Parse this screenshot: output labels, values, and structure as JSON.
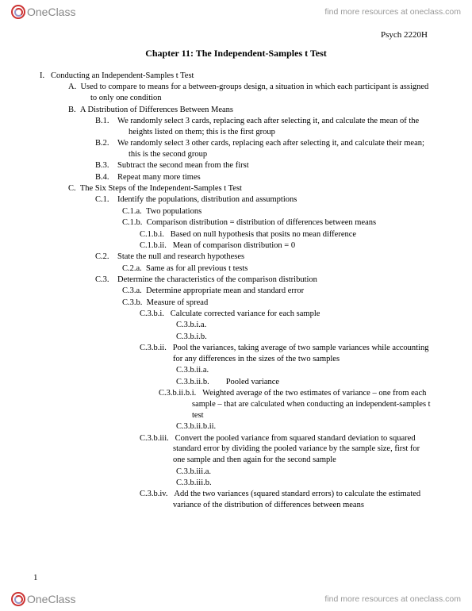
{
  "brand": {
    "name": "OneClass",
    "tagline": "find more resources at oneclass.com"
  },
  "course_code": "Psych 2220H",
  "chapter_title": "Chapter 11: The Independent-Samples t Test",
  "page_number": "1",
  "outline": {
    "I": {
      "num": "I.",
      "text": "Conducting an Independent-Samples t Test"
    },
    "A": {
      "num": "A.",
      "text": "Used to compare to means for a between-groups design, a situation in which each participant is assigned to only one condition"
    },
    "B": {
      "num": "B.",
      "text": "A Distribution of Differences Between Means"
    },
    "B1": {
      "num": "B.1.",
      "text": "We randomly select 3 cards, replacing each after selecting it, and calculate the mean of the heights listed on them; this is the first group"
    },
    "B2": {
      "num": "B.2.",
      "text": "We randomly select 3 other cards, replacing each after selecting it, and calculate their mean; this is the second group"
    },
    "B3": {
      "num": "B.3.",
      "text": "Subtract the second mean from the first"
    },
    "B4": {
      "num": "B.4.",
      "text": "Repeat many more times"
    },
    "C": {
      "num": "C.",
      "text": "The Six Steps of the Independent-Samples t Test"
    },
    "C1": {
      "num": "C.1.",
      "text": "Identify the populations, distribution and assumptions"
    },
    "C1a": {
      "num": "C.1.a.",
      "text": "Two populations"
    },
    "C1b": {
      "num": "C.1.b.",
      "text": "Comparison distribution = distribution of differences between means"
    },
    "C1bi": {
      "num": "C.1.b.i.",
      "text": "Based on null hypothesis that posits no mean difference"
    },
    "C1bii": {
      "num": "C.1.b.ii.",
      "text": "Mean of comparison distribution = 0"
    },
    "C2": {
      "num": "C.2.",
      "text": "State the null and research hypotheses"
    },
    "C2a": {
      "num": "C.2.a.",
      "text": "Same as for all previous t tests"
    },
    "C3": {
      "num": "C.3.",
      "text": "Determine the characteristics of the comparison distribution"
    },
    "C3a": {
      "num": "C.3.a.",
      "text": "Determine appropriate mean and standard error"
    },
    "C3b": {
      "num": "C.3.b.",
      "text": "Measure of spread"
    },
    "C3bi": {
      "num": "C.3.b.i.",
      "text": "Calculate corrected variance for each sample"
    },
    "C3bia": {
      "num": "C.3.b.i.a.",
      "text": ""
    },
    "C3bib": {
      "num": "C.3.b.i.b.",
      "text": ""
    },
    "C3bii": {
      "num": "C.3.b.ii.",
      "text": "Pool the variances, taking average of two sample variances while accounting for any differences in the sizes of the two samples"
    },
    "C3biia": {
      "num": "C.3.b.ii.a.",
      "text": ""
    },
    "C3biib": {
      "num": "C.3.b.ii.b.",
      "text": "Pooled variance"
    },
    "C3biibi": {
      "num": "C.3.b.ii.b.i.",
      "text": "Weighted average of the two estimates of variance – one from each sample – that are calculated when conducting an independent-samples t test"
    },
    "C3biibii": {
      "num": "C.3.b.ii.b.ii.",
      "text": ""
    },
    "C3biii": {
      "num": "C.3.b.iii.",
      "text": "Convert the pooled variance from squared standard deviation to squared standard error by dividing the pooled variance by the sample size, first for one sample and then again for the second sample"
    },
    "C3biiia": {
      "num": "C.3.b.iii.a.",
      "text": ""
    },
    "C3biiib": {
      "num": "C.3.b.iii.b.",
      "text": ""
    },
    "C3biv": {
      "num": "C.3.b.iv.",
      "text": "Add the two variances (squared standard errors) to calculate the estimated variance of the distribution of differences between means"
    }
  }
}
